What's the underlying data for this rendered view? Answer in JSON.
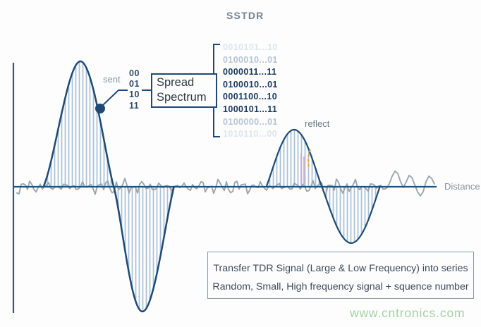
{
  "title": "SSTDR",
  "labels": {
    "sent": "sent",
    "reflect": "reflect",
    "distance": "Distance"
  },
  "bits": [
    "00",
    "01",
    "10",
    "11"
  ],
  "spread_box": {
    "line1": "Spread",
    "line2": "Spectrum"
  },
  "sequences": [
    "0010101...10",
    "0100010...01",
    "0000011...11",
    "0100010...01",
    "0001100...10",
    "1000101...11",
    "0100000...01",
    "1010110...00"
  ],
  "note": {
    "line1": "Transfer TDR Signal (Large & Low Frequency) into series",
    "line2": "Random, Small, High frequency signal + squence number"
  },
  "watermark": "www.cntronics.com",
  "colors": {
    "outline_navy": "#1d4a75",
    "axis_navy": "#1c5380",
    "hatch_blue": "#a9c0d6",
    "noise_gray": "#9aa6b0",
    "sequence_text": "#1a3a61",
    "faded_sequence_text": "#b6c4d7",
    "very_faded_sequence_text": "#dde5ef",
    "marker_orange": "#e8a33d",
    "watermark_green": "#a2d2a2"
  }
}
